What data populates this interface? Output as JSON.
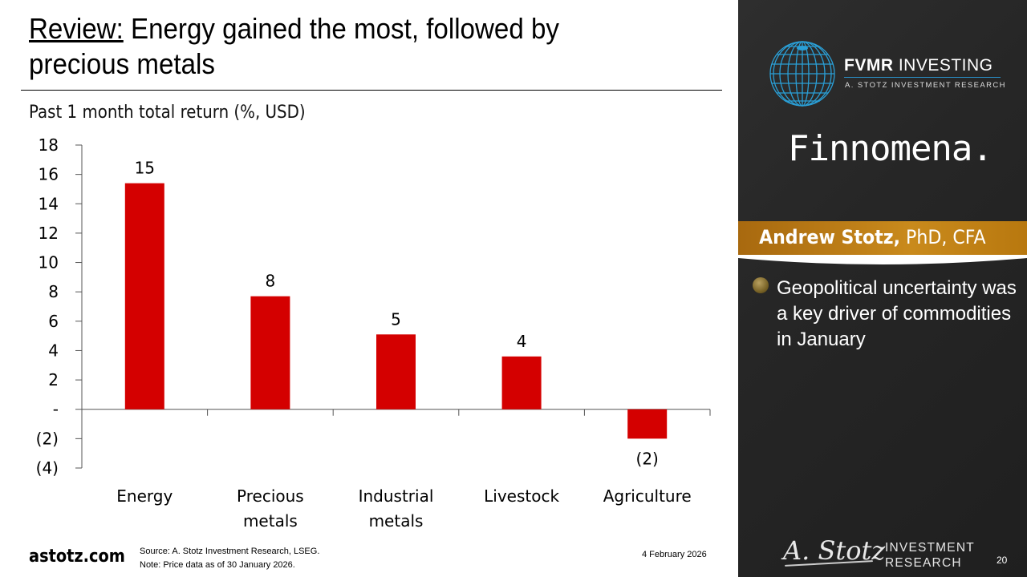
{
  "slide": {
    "title_prefix": "Review:",
    "title_rest": " Energy gained the most, followed by precious metals",
    "subtitle": "Past 1 month total return (%, USD)",
    "footer_site": "astotz.com",
    "source": "Source: A. Stotz Investment Research, LSEG.",
    "note": "Note: Price data as of 30 January 2026.",
    "date": "4 February 2026",
    "page_number": "20"
  },
  "sidebar": {
    "brand_main_bold": "FVMR",
    "brand_main_rest": " INVESTING",
    "brand_sub": "A. STOTZ INVESTMENT RESEARCH",
    "partner": "Finnomena.",
    "presenter_name": "Andrew Stotz,",
    "presenter_creds": " PhD, CFA",
    "bullets": [
      "Geopolitical uncertainty was a key driver of commodities in January"
    ],
    "logo_signature": "A. Stotz",
    "logo_line1": "INVESTMENT",
    "logo_line2": "RESEARCH"
  },
  "colors": {
    "bar": "#d40000",
    "banner": "#c07f16",
    "sidebar_bg": "#262626",
    "globe": "#2a9fd6"
  },
  "chart_data": {
    "type": "bar",
    "title": "Past 1 month total return (%, USD)",
    "xlabel": "",
    "ylabel": "",
    "categories": [
      "Energy",
      "Precious metals",
      "Industrial metals",
      "Livestock",
      "Agriculture"
    ],
    "category_lines": [
      [
        "Energy"
      ],
      [
        "Precious",
        "metals"
      ],
      [
        "Industrial",
        "metals"
      ],
      [
        "Livestock"
      ],
      [
        "Agriculture"
      ]
    ],
    "values": [
      15.4,
      7.7,
      5.1,
      3.6,
      -2.0
    ],
    "data_labels": [
      "15",
      "8",
      "5",
      "4",
      "(2)"
    ],
    "ylim": [
      -4,
      18
    ],
    "yticks": [
      18,
      16,
      14,
      12,
      10,
      8,
      6,
      4,
      2,
      0,
      -2,
      -4
    ],
    "ytick_labels": [
      "18",
      "16",
      "14",
      "12",
      "10",
      "8",
      "6",
      "4",
      "2",
      "-",
      "(2)",
      "(4)"
    ],
    "grid": false,
    "legend": "none"
  }
}
